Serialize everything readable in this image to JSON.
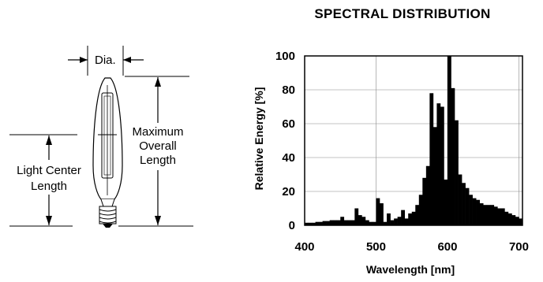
{
  "diagram": {
    "dia_label": "Dia.",
    "light_center_label": [
      "Light Center",
      "Length"
    ],
    "max_overall_label": [
      "Maximum",
      "Overall",
      "Length"
    ]
  },
  "chart_data": {
    "type": "bar",
    "title": "SPECTRAL DISTRIBUTION",
    "xlabel": "Wavelength [nm]",
    "ylabel": "Relative Energy [%]",
    "xlim": [
      400,
      705
    ],
    "ylim": [
      0,
      100
    ],
    "xticks": [
      400,
      500,
      600,
      700
    ],
    "yticks": [
      0,
      20,
      40,
      60,
      80,
      100
    ],
    "grid": true,
    "bin_width_nm": 5,
    "x": [
      400,
      405,
      410,
      415,
      420,
      425,
      430,
      435,
      440,
      445,
      450,
      455,
      460,
      465,
      470,
      475,
      480,
      485,
      490,
      495,
      500,
      505,
      510,
      515,
      520,
      525,
      530,
      535,
      540,
      545,
      550,
      555,
      560,
      565,
      570,
      575,
      580,
      585,
      590,
      595,
      600,
      605,
      610,
      615,
      620,
      625,
      630,
      635,
      640,
      645,
      650,
      655,
      660,
      665,
      670,
      675,
      680,
      685,
      690,
      695,
      700
    ],
    "values": [
      1.5,
      1.5,
      1.5,
      2,
      2,
      2.5,
      2.5,
      3,
      3,
      3,
      5,
      3,
      3,
      3,
      10,
      6,
      5,
      3,
      2,
      2,
      16,
      13,
      2,
      7,
      3,
      4,
      5,
      9,
      4,
      7,
      8,
      12,
      18,
      28,
      35,
      78,
      58,
      72,
      70,
      27,
      100,
      81,
      62,
      30,
      25,
      22,
      18,
      16,
      15,
      13,
      12,
      12,
      12,
      11,
      10,
      10,
      8,
      7,
      6,
      5,
      4
    ]
  }
}
